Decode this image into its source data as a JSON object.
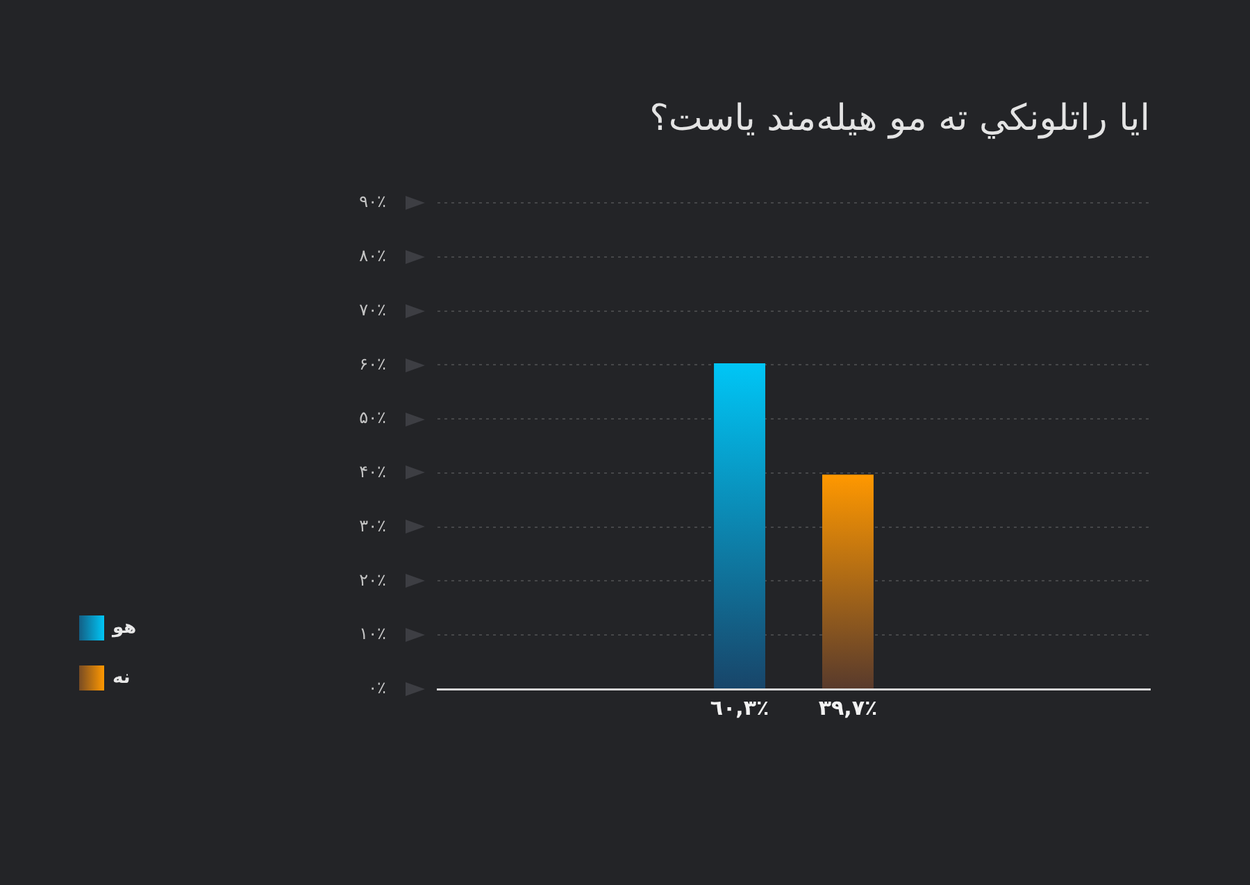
{
  "chart_data": {
    "type": "bar",
    "title": "ایا راتلونکي ته مو هیله‌مند یاست؟",
    "categories": [
      null
    ],
    "series": [
      {
        "name": "هو",
        "color": "#00c6f6",
        "values": [
          60.3
        ],
        "value_labels": [
          "٦٠,٣٪"
        ]
      },
      {
        "name": "نه",
        "color": "#ff9800",
        "values": [
          39.7
        ],
        "value_labels": [
          "٣٩,٧٪"
        ]
      }
    ],
    "ylim": [
      0,
      90
    ],
    "yticks": [
      {
        "value": 0,
        "label": "۰٪"
      },
      {
        "value": 10,
        "label": "۱۰٪"
      },
      {
        "value": 20,
        "label": "۲۰٪"
      },
      {
        "value": 30,
        "label": "۳۰٪"
      },
      {
        "value": 40,
        "label": "۴۰٪"
      },
      {
        "value": 50,
        "label": "۵۰٪"
      },
      {
        "value": 60,
        "label": "۶۰٪"
      },
      {
        "value": 70,
        "label": "۷۰٪"
      },
      {
        "value": 80,
        "label": "۸۰٪"
      },
      {
        "value": 90,
        "label": "۹۰٪"
      }
    ],
    "grid": "y",
    "legend": "bottom left",
    "tick_labels": "y"
  }
}
